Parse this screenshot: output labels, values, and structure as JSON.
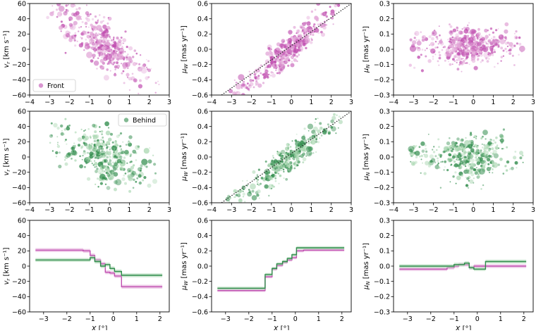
{
  "colors": {
    "front": "#c04fb0",
    "front_light": "#e3a8d8",
    "behind": "#2e8b4a",
    "behind_light": "#a8d6b0",
    "diag": "#222222"
  },
  "legend": {
    "front": "Front",
    "behind": "Behind"
  },
  "chart_data": [
    {
      "id": "front-vr",
      "row": 0,
      "col": 0,
      "type": "scatter",
      "series": "front",
      "xlim": [
        -4,
        3
      ],
      "ylim": [
        -60,
        60
      ],
      "xticks": [
        "-4",
        "-3",
        "-2",
        "-1",
        "0",
        "1",
        "2",
        "3"
      ],
      "yticks": [
        "-60",
        "-40",
        "-20",
        "0",
        "20",
        "40",
        "60"
      ],
      "ylabel_pre": "v",
      "ylabel_sub": "r",
      "ylabel_unit": " [km s⁻¹]",
      "legend": "front",
      "cloud": {
        "trend": [
          -20,
          0
        ],
        "spreadX": 0.75,
        "spreadY": 16,
        "n": 460,
        "seed": 11
      }
    },
    {
      "id": "front-muw",
      "row": 0,
      "col": 1,
      "type": "scatter",
      "series": "front",
      "xlim": [
        -4,
        3
      ],
      "ylim": [
        -0.6,
        0.6
      ],
      "xticks": [
        "-4",
        "-3",
        "-2",
        "-1",
        "0",
        "1",
        "2",
        "3"
      ],
      "yticks": [
        "-0.6",
        "-0.4",
        "-0.2",
        "0.0",
        "0.2",
        "0.4",
        "0.6"
      ],
      "ylabel_pre": "μ",
      "ylabel_sub": "W",
      "ylabel_unit": " [mas yr⁻¹]",
      "diagonal": [
        [
          -3.5,
          -0.6
        ],
        [
          3,
          0.6
        ]
      ],
      "cloud": {
        "trend": [
          0.22,
          0.02
        ],
        "spreadX": 0.75,
        "spreadY": 0.09,
        "n": 460,
        "seed": 23
      }
    },
    {
      "id": "front-mun",
      "row": 0,
      "col": 2,
      "type": "scatter",
      "series": "front",
      "xlim": [
        -4,
        3
      ],
      "ylim": [
        -0.3,
        0.3
      ],
      "xticks": [
        "-4",
        "-3",
        "-2",
        "-1",
        "0",
        "1",
        "2",
        "3"
      ],
      "yticks": [
        "-0.3",
        "-0.2",
        "-0.1",
        "0.0",
        "0.1",
        "0.2",
        "0.3"
      ],
      "ylabel_pre": "μ",
      "ylabel_sub": "N",
      "ylabel_unit": " [mas yr⁻¹]",
      "cloud": {
        "trend": [
          0.0,
          0.02
        ],
        "spreadX": 0.75,
        "spreadY": 0.06,
        "n": 460,
        "seed": 37
      }
    },
    {
      "id": "behind-vr",
      "row": 1,
      "col": 0,
      "type": "scatter",
      "series": "behind",
      "xlim": [
        -4,
        3
      ],
      "ylim": [
        -60,
        60
      ],
      "xticks": [
        "-4",
        "-3",
        "-2",
        "-1",
        "0",
        "1",
        "2",
        "3"
      ],
      "yticks": [
        "-60",
        "-40",
        "-20",
        "0",
        "20",
        "40",
        "60"
      ],
      "ylabel_pre": "v",
      "ylabel_sub": "r",
      "ylabel_unit": " [km s⁻¹]",
      "legend": "behind",
      "cloud": {
        "trend": [
          -10,
          0
        ],
        "spreadX": 0.8,
        "spreadY": 17,
        "n": 380,
        "seed": 51
      }
    },
    {
      "id": "behind-muw",
      "row": 1,
      "col": 1,
      "type": "scatter",
      "series": "behind",
      "xlim": [
        -4,
        3
      ],
      "ylim": [
        -0.6,
        0.6
      ],
      "xticks": [
        "-4",
        "-3",
        "-2",
        "-1",
        "0",
        "1",
        "2",
        "3"
      ],
      "yticks": [
        "-0.6",
        "-0.4",
        "-0.2",
        "0.0",
        "0.2",
        "0.4",
        "0.6"
      ],
      "ylabel_pre": "μ",
      "ylabel_sub": "W",
      "ylabel_unit": " [mas yr⁻¹]",
      "diagonal": [
        [
          -3.5,
          -0.6
        ],
        [
          3,
          0.6
        ]
      ],
      "cloud": {
        "trend": [
          0.2,
          0.0
        ],
        "spreadX": 0.8,
        "spreadY": 0.09,
        "n": 380,
        "seed": 67
      }
    },
    {
      "id": "behind-mun",
      "row": 1,
      "col": 2,
      "type": "scatter",
      "series": "behind",
      "xlim": [
        -4,
        3
      ],
      "ylim": [
        -0.3,
        0.3
      ],
      "xticks": [
        "-4",
        "-3",
        "-2",
        "-1",
        "0",
        "1",
        "2",
        "3"
      ],
      "yticks": [
        "-0.3",
        "-0.2",
        "-0.1",
        "0.0",
        "0.1",
        "0.2",
        "0.3"
      ],
      "ylabel_pre": "μ",
      "ylabel_sub": "N",
      "ylabel_unit": " [mas yr⁻¹]",
      "cloud": {
        "trend": [
          0.0,
          0.0
        ],
        "spreadX": 0.8,
        "spreadY": 0.07,
        "n": 380,
        "seed": 79
      }
    },
    {
      "id": "binned-vr",
      "row": 2,
      "col": 0,
      "type": "line",
      "series": "both",
      "xlim": [
        -3.6,
        2.4
      ],
      "ylim": [
        -60,
        60
      ],
      "xticks": [
        "-3",
        "-2",
        "-1",
        "0",
        "1",
        "2"
      ],
      "xtickvals": [
        -3,
        -2,
        -1,
        0,
        1,
        2
      ],
      "yticks": [
        "-60",
        "-40",
        "-20",
        "0",
        "20",
        "40",
        "60"
      ],
      "ylabel_pre": "v",
      "ylabel_sub": "r",
      "ylabel_unit": " [km s⁻¹]",
      "xlabel": "X [°]",
      "edges": [
        -3.35,
        -1.3,
        -1.0,
        -0.8,
        -0.55,
        -0.35,
        -0.15,
        0.05,
        0.35,
        2.1
      ],
      "front": [
        21,
        20,
        14,
        8,
        3,
        -8,
        -9,
        -13,
        -27
      ],
      "behind": [
        8,
        8,
        11,
        6,
        0,
        2,
        -3,
        -7,
        -12
      ],
      "band": 2.5
    },
    {
      "id": "binned-muw",
      "row": 2,
      "col": 1,
      "type": "line",
      "series": "both",
      "xlim": [
        -3.6,
        2.4
      ],
      "ylim": [
        -0.6,
        0.6
      ],
      "xticks": [
        "-3",
        "-2",
        "-1",
        "0",
        "1",
        "2"
      ],
      "xtickvals": [
        -3,
        -2,
        -1,
        0,
        1,
        2
      ],
      "yticks": [
        "-0.6",
        "-0.4",
        "-0.2",
        "0.0",
        "0.2",
        "0.4",
        "0.6"
      ],
      "ylabel_pre": "μ",
      "ylabel_sub": "W",
      "ylabel_unit": " [mas yr⁻¹]",
      "xlabel": "X [°]",
      "edges": [
        -3.35,
        -1.3,
        -1.0,
        -0.8,
        -0.55,
        -0.35,
        -0.15,
        0.05,
        0.35,
        2.1
      ],
      "front": [
        -0.32,
        -0.14,
        -0.04,
        0.01,
        0.05,
        0.08,
        0.11,
        0.2,
        0.21
      ],
      "behind": [
        -0.29,
        -0.11,
        -0.03,
        0.03,
        0.06,
        0.1,
        0.15,
        0.24,
        0.24
      ],
      "band": 0.02
    },
    {
      "id": "binned-mun",
      "row": 2,
      "col": 2,
      "type": "line",
      "series": "both",
      "xlim": [
        -3.6,
        2.4
      ],
      "ylim": [
        -0.3,
        0.3
      ],
      "xticks": [
        "-3",
        "-2",
        "-1",
        "0",
        "1",
        "2"
      ],
      "xtickvals": [
        -3,
        -2,
        -1,
        0,
        1,
        2
      ],
      "yticks": [
        "-0.3",
        "-0.2",
        "-0.1",
        "0.0",
        "0.1",
        "0.2",
        "0.3"
      ],
      "ylabel_pre": "μ",
      "ylabel_sub": "N",
      "ylabel_unit": " [mas yr⁻¹]",
      "xlabel": "X [°]",
      "edges": [
        -3.35,
        -1.3,
        -1.0,
        -0.8,
        -0.55,
        -0.35,
        -0.15,
        0.05,
        0.35,
        2.1
      ],
      "front": [
        -0.02,
        -0.01,
        0.0,
        0.01,
        0.01,
        -0.01,
        0.0,
        0.0,
        0.0
      ],
      "behind": [
        0.0,
        0.0,
        0.01,
        0.01,
        0.02,
        -0.01,
        -0.02,
        -0.02,
        0.03
      ],
      "band": 0.012
    }
  ]
}
